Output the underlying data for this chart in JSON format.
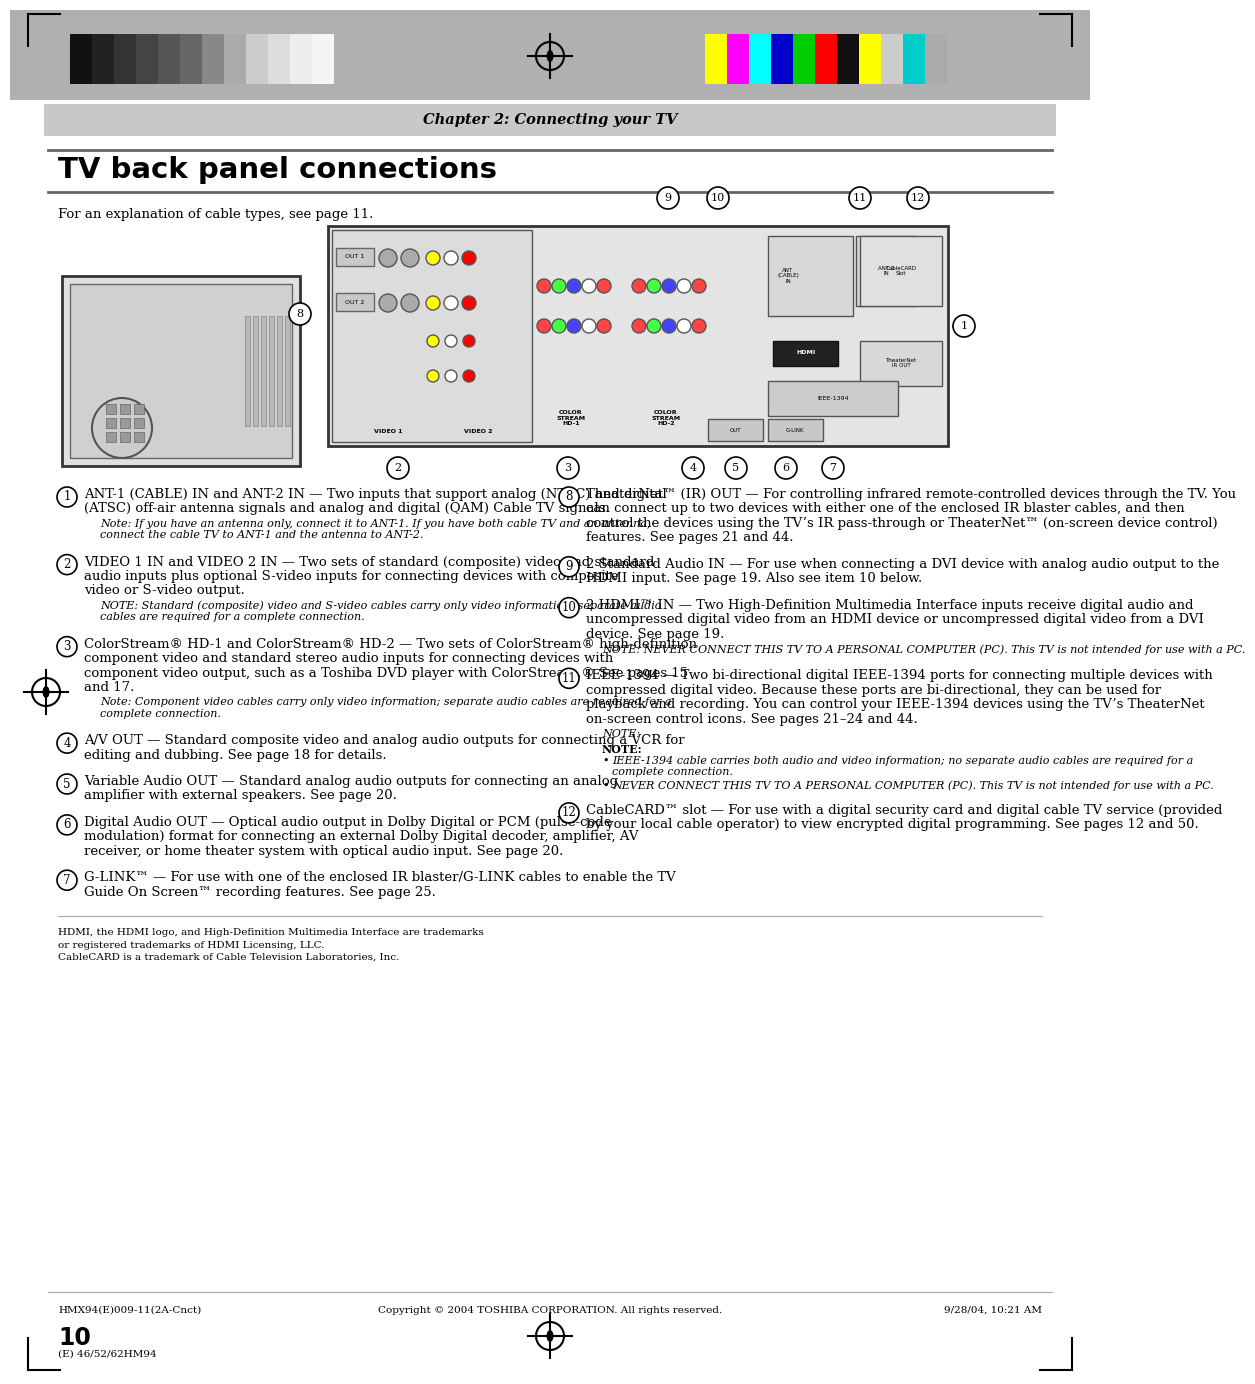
{
  "chapter_header": "Chapter 2: Connecting your TV",
  "page_title": "TV back panel connections",
  "intro_text": "For an explanation of cable types, see page 11.",
  "page_number": "10",
  "copyright": "Copyright © 2004 TOSHIBA CORPORATION. All rights reserved.",
  "footer_left": "HMX94(E)009-11(2A-Cnct)",
  "footer_right": "9/28/04, 10:21 AM",
  "footer_model": "(E) 46/52/62HM94",
  "trademark_text": "HDMI, the HDMI logo, and High-Definition Multimedia Interface are trademarks\nor registered trademarks of HDMI Licensing, LLC.\nCableCARD is a trademark of Cable Television Laboratories, Inc.",
  "grays": [
    "#111111",
    "#222222",
    "#333333",
    "#444444",
    "#555555",
    "#666666",
    "#888888",
    "#aaaaaa",
    "#cccccc",
    "#dddddd",
    "#eeeeee",
    "#f5f5f5"
  ],
  "colors_right": [
    "#ffff00",
    "#ff00ff",
    "#00ffff",
    "#0000cc",
    "#00cc00",
    "#ff0000",
    "#111111",
    "#ffff00",
    "#cccccc",
    "#00cccc",
    "#aaaaaa"
  ],
  "items": [
    {
      "num": "1",
      "bold": "ANT-1 (CABLE) IN",
      "connector": " and ",
      "bold2": "ANT-2 IN",
      "text": " — Two inputs that support analog (NTSC) and digital (ATSC) off-air antenna signals and analog and digital (QAM) Cable TV signals.",
      "note_label": "Note:",
      "note": " If you have an antenna only, connect it to ANT-1. If you have both cable TV and an antenna, connect the cable TV to ANT-1 and the antenna to ANT-2.",
      "note_bullets": []
    },
    {
      "num": "2",
      "bold": "VIDEO 1 IN",
      "connector": " and ",
      "bold2": "VIDEO 2 IN",
      "text": " — Two sets of standard (composite) video and standard audio inputs plus optional S-video inputs for connecting devices with composite video or S-video output.",
      "note_label": "NOTE:",
      "note": " Standard (composite) video and S-video cables carry only video information; separate audio cables are required for a complete connection.",
      "note_bullets": []
    },
    {
      "num": "3",
      "bold": "ColorStream® HD-1",
      "connector": " and ",
      "bold2": "ColorStream® HD-2",
      "text": " — Two sets of ColorStream® high-definition component video and standard stereo audio inputs for connecting devices with component video output, such as a Toshiba DVD player with ColorStream.®  See pages 15 and 17.",
      "note_label": "Note:",
      "note": " Component video cables carry only video information; separate audio cables are required for a complete connection.",
      "note_bullets": []
    },
    {
      "num": "4",
      "bold": "A/V OUT",
      "connector": "",
      "bold2": "",
      "text": " — Standard composite video and analog audio outputs for connecting a VCR for editing and dubbing. See page 18 for details.",
      "note_label": "",
      "note": "",
      "note_bullets": []
    },
    {
      "num": "5",
      "bold": "Variable Audio OUT",
      "connector": "",
      "bold2": "",
      "text": " — Standard analog audio outputs for connecting an analog amplifier with external speakers. See page 20.",
      "note_label": "",
      "note": "",
      "note_bullets": []
    },
    {
      "num": "6",
      "bold": "Digital Audio OUT",
      "connector": "",
      "bold2": "",
      "text": " — Optical audio output in Dolby Digital or PCM (pulse-code modulation) format for connecting an external Dolby Digital decoder, amplifier, AV receiver, or home theater system with optical audio input. See page 20.",
      "note_label": "",
      "note": "",
      "note_bullets": []
    },
    {
      "num": "7",
      "bold": "G-LINK™",
      "connector": "",
      "bold2": "",
      "text": " — For use with one of the enclosed IR blaster/G-LINK cables to enable the TV Guide On Screen™ recording features. See page 25.",
      "note_label": "",
      "note": "",
      "note_bullets": []
    }
  ],
  "items_right": [
    {
      "num": "8",
      "bold": "TheaterNet™ (IR) OUT",
      "connector": "",
      "bold2": "",
      "text": " — For controlling infrared remote-controlled devices through the TV. You can connect up to two devices with either one of the enclosed IR blaster cables, and then control the devices using the TV’s IR pass-through or TheaterNet™ (on-screen device control) features. See pages 21 and 44.",
      "note_label": "",
      "note": "",
      "note_bullets": []
    },
    {
      "num": "9",
      "bold": "2 Standard Audio IN",
      "connector": "",
      "bold2": "",
      "text": " — For use when connecting a DVI device with analog audio output to the HDMI input. See page 19.  Also see item 10 below.",
      "note_label": "",
      "note": "",
      "note_bullets": []
    },
    {
      "num": "10",
      "bold": "2 HDMI™ IN",
      "connector": "",
      "bold2": "",
      "text": " — Two High-Definition Multimedia Interface inputs receive digital audio and uncompressed digital video from an HDMI device or uncompressed digital video from a DVI device. See page 19.",
      "note_label": "NOTE: NEVER CONNECT THIS TV TO A PERSONAL COMPUTER (PC).",
      "note": " This TV is not intended for use with a PC.",
      "note_bullets": []
    },
    {
      "num": "11",
      "bold": "IEEE-1394",
      "connector": "",
      "bold2": "",
      "text": " — Two bi-directional digital IEEE-1394 ports for connecting multiple devices with compressed digital video. Because these ports are bi-directional, they can be used for playback and recording. You can control your IEEE-1394 devices using the TV’s TheaterNet on-screen control icons. See pages 21–24 and 44.",
      "note_label": "NOTE:",
      "note": "",
      "note_bullets": [
        "IEEE-1394 cable carries both audio and video information; no separate audio cables are required for a complete connection.",
        "NEVER CONNECT THIS TV TO A PERSONAL COMPUTER (PC). This TV is not intended for use with a PC."
      ]
    },
    {
      "num": "12",
      "bold": "CableCARD™ slot",
      "connector": "",
      "bold2": "",
      "text": " — For use with a digital security card and digital cable TV service (provided by your local cable operator) to view encrypted digital programming. See pages 12 and 50.",
      "note_label": "",
      "note": "",
      "note_bullets": []
    }
  ]
}
